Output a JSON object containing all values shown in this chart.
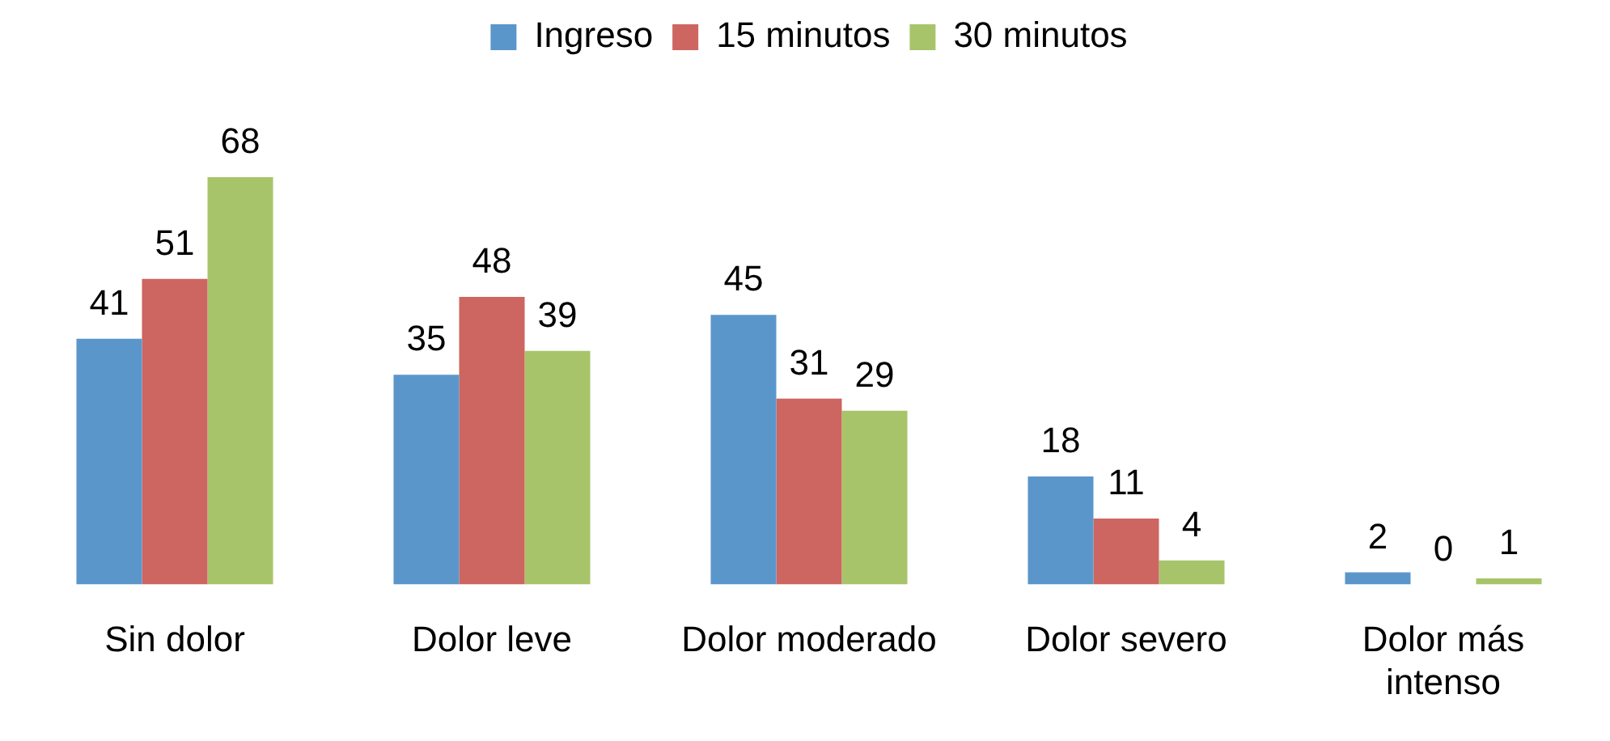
{
  "chart_data": {
    "type": "bar",
    "categories": [
      "Sin dolor",
      "Dolor leve",
      "Dolor moderado",
      "Dolor severo",
      "Dolor más intenso"
    ],
    "series": [
      {
        "name": "Ingreso",
        "color": "#5b96cb",
        "values": [
          41,
          35,
          45,
          18,
          2
        ]
      },
      {
        "name": "15 minutos",
        "color": "#cd6660",
        "values": [
          51,
          48,
          31,
          11,
          0
        ]
      },
      {
        "name": "30 minutos",
        "color": "#a8c46a",
        "values": [
          68,
          39,
          29,
          4,
          1
        ]
      }
    ],
    "data_labels": true,
    "legend": "top",
    "grid": false,
    "tick_labels": "x"
  }
}
